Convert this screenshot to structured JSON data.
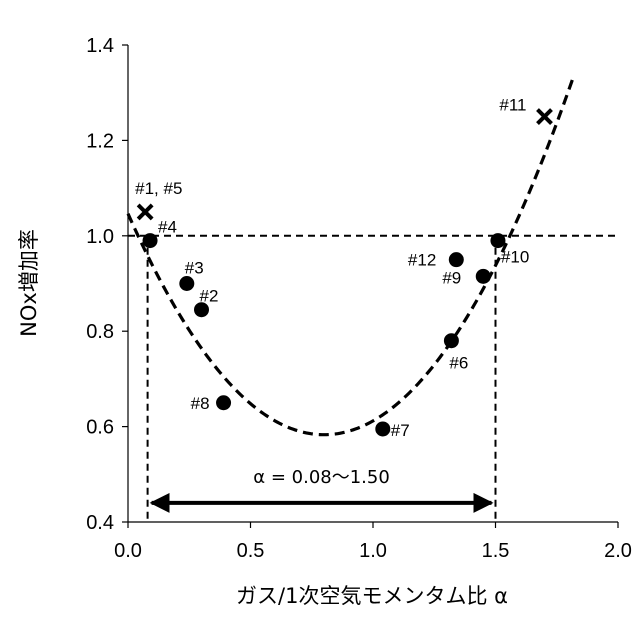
{
  "chart_data": {
    "type": "scatter",
    "xlabel": "ガス/1次空気モメンタム比 α",
    "ylabel": "NOx増加率",
    "xlim": [
      0.0,
      2.0
    ],
    "ylim": [
      0.4,
      1.4
    ],
    "x_ticks": [
      "0.0",
      "0.5",
      "1.0",
      "1.5",
      "2.0"
    ],
    "y_ticks": [
      "0.4",
      "0.6",
      "0.8",
      "1.0",
      "1.2",
      "1.4"
    ],
    "grid": false,
    "points": [
      {
        "label": "#4",
        "x": 0.09,
        "y": 0.99,
        "marker": "circle"
      },
      {
        "label": "#3",
        "x": 0.24,
        "y": 0.9,
        "marker": "circle"
      },
      {
        "label": "#2",
        "x": 0.3,
        "y": 0.845,
        "marker": "circle"
      },
      {
        "label": "#8",
        "x": 0.39,
        "y": 0.65,
        "marker": "circle"
      },
      {
        "label": "#7",
        "x": 1.04,
        "y": 0.595,
        "marker": "circle"
      },
      {
        "label": "#6",
        "x": 1.32,
        "y": 0.78,
        "marker": "circle"
      },
      {
        "label": "#12",
        "x": 1.34,
        "y": 0.95,
        "marker": "circle"
      },
      {
        "label": "#9",
        "x": 1.45,
        "y": 0.915,
        "marker": "circle"
      },
      {
        "label": "#10",
        "x": 1.51,
        "y": 0.99,
        "marker": "circle"
      },
      {
        "label": "#1, #5",
        "x": 0.07,
        "y": 1.05,
        "marker": "cross"
      },
      {
        "label": "#11",
        "x": 1.7,
        "y": 1.25,
        "marker": "cross"
      }
    ],
    "fit_curve": {
      "style": "dashed",
      "vertex": [
        0.8,
        0.583
      ],
      "a": 0.724
    },
    "reference_line_y": 1.0,
    "reference_lines_x": [
      0.08,
      1.5
    ],
    "annotation": {
      "text": "α = 0.08～1.50",
      "range": [
        0.08,
        1.5
      ],
      "y": 0.44
    }
  }
}
